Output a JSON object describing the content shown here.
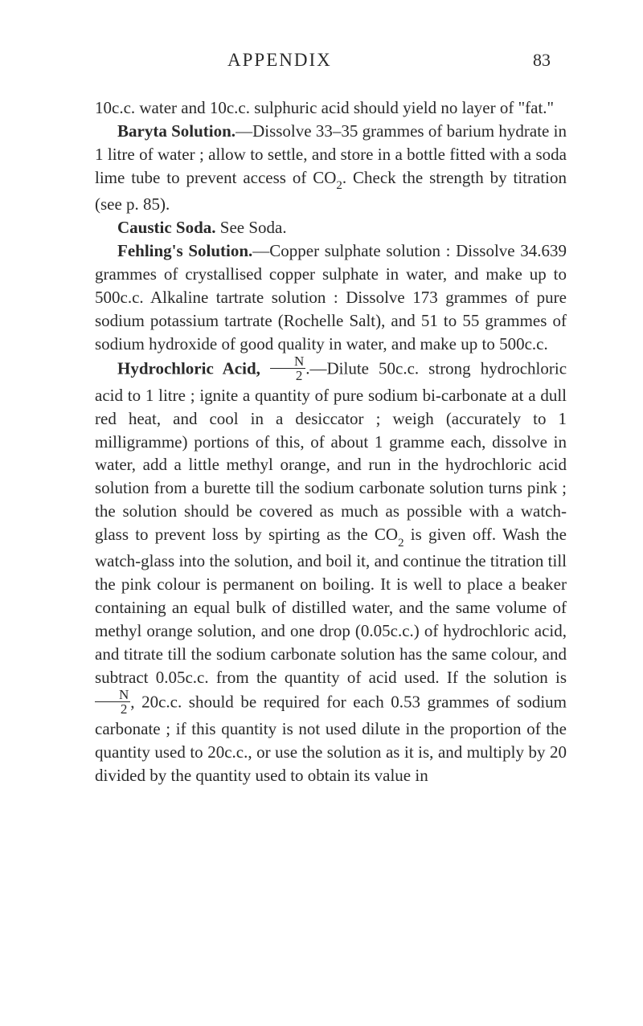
{
  "header": {
    "title": "APPENDIX",
    "page": "83"
  },
  "paragraphs": {
    "p1_a": "10c.c. water and 10c.c. sulphuric acid should yield no layer of \"fat.\"",
    "baryta_label": "Baryta Solution.",
    "baryta_text": "—Dissolve 33–35 grammes of barium hydrate in 1 litre of water ; allow to settle, and store in a bottle fitted with a soda lime tube to prevent access of CO",
    "baryta_text2": ". Check the strength by titration (see p. 85).",
    "caustic_label": "Caustic Soda.",
    "caustic_text": " See Soda.",
    "fehling_label": "Fehling's Solution.",
    "fehling_text": "—Copper sulphate solution : Dissolve 34.639 grammes of crystallised copper sulphate in water, and make up to 500c.c. Alkaline tartrate solution : Dissolve 173 grammes of pure sodium potassium tartrate (Rochelle Salt), and 51 to 55 grammes of sodium hydroxide of good quality in water, and make up to 500c.c.",
    "hydro_label": "Hydrochloric Acid,",
    "hydro_frac_n": "N",
    "hydro_frac_d": "2",
    "hydro_text1": ".—Dilute 50c.c. strong hydrochloric acid to 1 litre ; ignite a quantity of pure sodium bi-carbonate at a dull red heat, and cool in a desiccator ; weigh (accurately to 1 milligramme) portions of this, of about 1 gramme each, dissolve in water, add a little methyl orange, and run in the hydrochloric acid solution from a burette till the sodium carbonate solution turns pink ; the solution should be covered as much as possible with a watch-glass to prevent loss by spirting as the CO",
    "hydro_text2": " is given off. Wash the watch-glass into the solution, and boil it, and continue the titration till the pink colour is permanent on boiling. It is well to place a beaker containing an equal bulk of distilled water, and the same volume of methyl orange solution, and one drop (0.05c.c.) of hydrochloric acid, and titrate till the sodium carbonate solution has the same colour, and subtract 0.05c.c. from the quantity of acid used. If the solution is ",
    "hydro_frac2_n": "N",
    "hydro_frac2_d": "2",
    "hydro_text3": ", 20c.c. should be required for each 0.53 grammes of sodium carbonate ; if this quantity is not used dilute in the proportion of the quantity used to 20c.c., or use the solution as it is, and multiply by 20 divided by the quantity used to obtain its value in",
    "sub2": "2"
  }
}
